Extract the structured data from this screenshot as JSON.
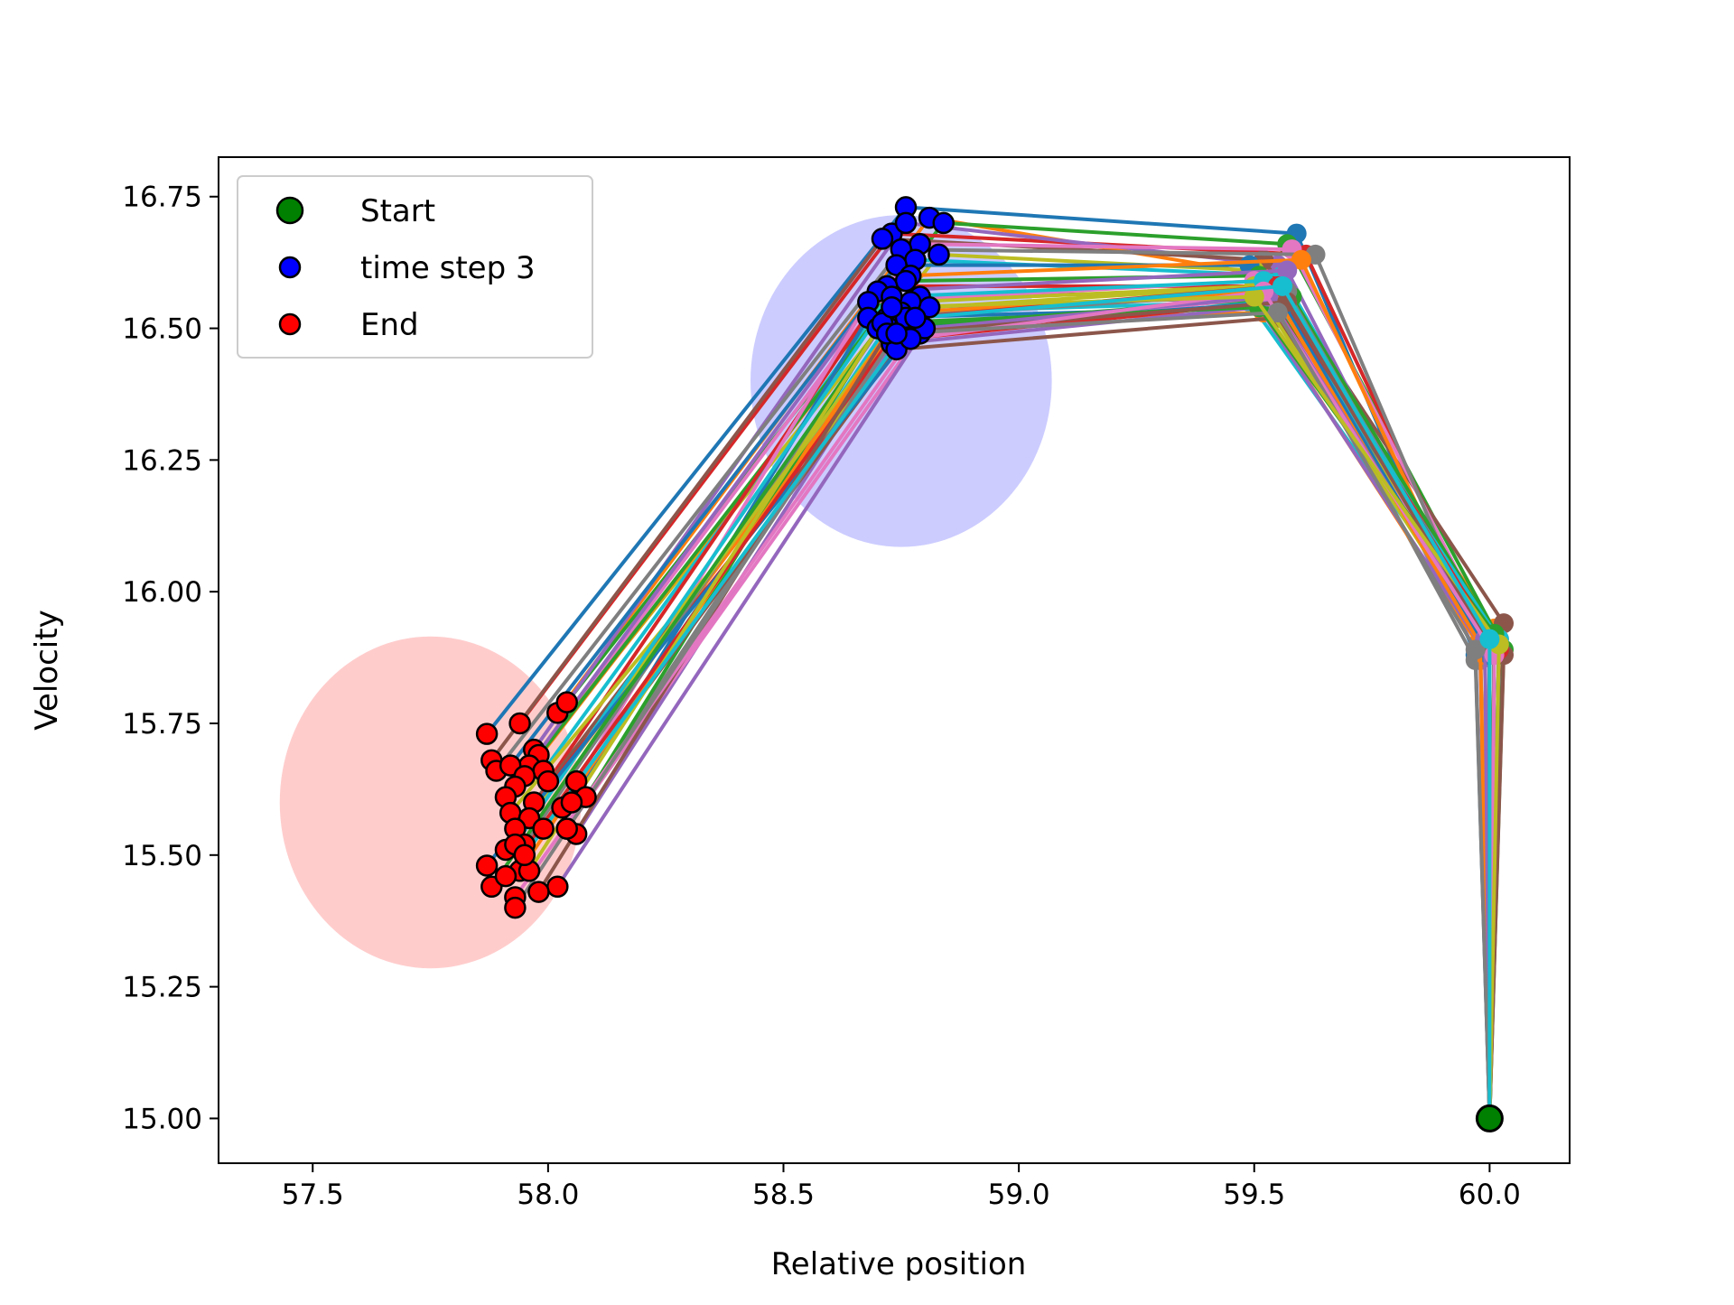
{
  "chart_data": {
    "type": "scatter",
    "title": "",
    "xlabel": "Relative position",
    "ylabel": "Velocity",
    "xlim": [
      57.3,
      60.17
    ],
    "ylim": [
      14.915,
      16.825
    ],
    "x_ticks": [
      57.5,
      58.0,
      58.5,
      59.0,
      59.5,
      60.0
    ],
    "x_tick_labels": [
      "57.5",
      "58.0",
      "58.5",
      "59.0",
      "59.5",
      "60.0"
    ],
    "y_ticks": [
      15.0,
      15.25,
      15.5,
      15.75,
      16.0,
      16.25,
      16.5,
      16.75
    ],
    "y_tick_labels": [
      "15.00",
      "15.25",
      "15.50",
      "15.75",
      "16.00",
      "16.25",
      "16.50",
      "16.75"
    ],
    "grid": false,
    "legend": {
      "position": "top-left",
      "entries": [
        {
          "label": "Start",
          "color": "#008000"
        },
        {
          "label": "time step 3",
          "color": "#0000ff"
        },
        {
          "label": "End",
          "color": "#ff0000"
        }
      ]
    },
    "ellipses": [
      {
        "name": "end-region",
        "center": [
          57.75,
          15.6
        ],
        "width": 0.64,
        "height": 0.63,
        "color": "#ff9999"
      },
      {
        "name": "time-step-3-region",
        "center": [
          58.75,
          16.4
        ],
        "width": 0.64,
        "height": 0.63,
        "color": "#9999ff"
      }
    ],
    "start": {
      "x": 60.0,
      "y": 15.0
    },
    "trajectory_colors": [
      "#1f77b4",
      "#ff7f0e",
      "#2ca02c",
      "#d62728",
      "#9467bd",
      "#8c564b",
      "#e377c2",
      "#7f7f7f",
      "#bcbd22",
      "#17becf"
    ],
    "trajectories": [
      [
        [
          59.97,
          15.88
        ],
        [
          59.59,
          16.68
        ],
        [
          58.76,
          16.73
        ],
        [
          57.87,
          15.73
        ]
      ],
      [
        [
          60.01,
          15.93
        ],
        [
          59.53,
          16.6
        ],
        [
          58.81,
          16.71
        ],
        [
          58.02,
          15.77
        ]
      ],
      [
        [
          60.02,
          15.91
        ],
        [
          59.57,
          16.66
        ],
        [
          58.84,
          16.7
        ],
        [
          58.04,
          15.79
        ]
      ],
      [
        [
          60.0,
          15.9
        ],
        [
          59.61,
          16.64
        ],
        [
          58.73,
          16.68
        ],
        [
          57.94,
          15.75
        ]
      ],
      [
        [
          59.98,
          15.87
        ],
        [
          59.55,
          16.62
        ],
        [
          58.76,
          16.7
        ],
        [
          57.97,
          15.7
        ]
      ],
      [
        [
          60.03,
          15.94
        ],
        [
          59.52,
          16.63
        ],
        [
          58.71,
          16.67
        ],
        [
          57.88,
          15.68
        ]
      ],
      [
        [
          60.0,
          15.92
        ],
        [
          59.58,
          16.65
        ],
        [
          58.79,
          16.66
        ],
        [
          57.98,
          15.69
        ]
      ],
      [
        [
          59.99,
          15.89
        ],
        [
          59.63,
          16.64
        ],
        [
          58.75,
          16.65
        ],
        [
          57.89,
          15.66
        ]
      ],
      [
        [
          60.01,
          15.91
        ],
        [
          59.5,
          16.61
        ],
        [
          58.83,
          16.64
        ],
        [
          57.96,
          15.67
        ]
      ],
      [
        [
          60.02,
          15.88
        ],
        [
          59.56,
          16.6
        ],
        [
          58.78,
          16.63
        ],
        [
          57.99,
          15.66
        ]
      ],
      [
        [
          60.0,
          15.9
        ],
        [
          59.49,
          16.62
        ],
        [
          58.74,
          16.62
        ],
        [
          57.92,
          15.67
        ]
      ],
      [
        [
          59.98,
          15.91
        ],
        [
          59.6,
          16.63
        ],
        [
          58.77,
          16.6
        ],
        [
          57.95,
          15.65
        ]
      ],
      [
        [
          60.03,
          15.89
        ],
        [
          59.51,
          16.6
        ],
        [
          58.76,
          16.59
        ],
        [
          57.93,
          15.63
        ]
      ],
      [
        [
          60.01,
          15.92
        ],
        [
          59.54,
          16.58
        ],
        [
          58.72,
          16.58
        ],
        [
          58.0,
          15.64
        ]
      ],
      [
        [
          59.99,
          15.88
        ],
        [
          59.57,
          16.61
        ],
        [
          58.7,
          16.57
        ],
        [
          57.91,
          15.61
        ]
      ],
      [
        [
          60.0,
          15.9
        ],
        [
          59.52,
          16.57
        ],
        [
          58.79,
          16.56
        ],
        [
          57.97,
          15.6
        ]
      ],
      [
        [
          60.02,
          15.91
        ],
        [
          59.5,
          16.59
        ],
        [
          58.68,
          16.55
        ],
        [
          58.06,
          15.64
        ]
      ],
      [
        [
          59.97,
          15.87
        ],
        [
          59.55,
          16.56
        ],
        [
          58.77,
          16.54
        ],
        [
          58.08,
          15.61
        ]
      ],
      [
        [
          60.01,
          15.89
        ],
        [
          59.53,
          16.58
        ],
        [
          58.81,
          16.54
        ],
        [
          57.92,
          15.58
        ]
      ],
      [
        [
          60.0,
          15.91
        ],
        [
          59.49,
          16.55
        ],
        [
          58.74,
          16.53
        ],
        [
          58.03,
          15.59
        ]
      ],
      [
        [
          60.02,
          15.9
        ],
        [
          59.56,
          16.54
        ],
        [
          58.68,
          16.52
        ],
        [
          58.05,
          15.6
        ]
      ],
      [
        [
          59.99,
          15.88
        ],
        [
          59.52,
          16.53
        ],
        [
          58.75,
          16.51
        ],
        [
          57.96,
          15.57
        ]
      ],
      [
        [
          60.01,
          15.92
        ],
        [
          59.58,
          16.56
        ],
        [
          58.7,
          16.5
        ],
        [
          58.04,
          15.55
        ]
      ],
      [
        [
          60.0,
          15.89
        ],
        [
          59.54,
          16.55
        ],
        [
          58.76,
          16.48
        ],
        [
          57.93,
          15.55
        ]
      ],
      [
        [
          59.98,
          15.9
        ],
        [
          59.51,
          16.54
        ],
        [
          58.73,
          16.47
        ],
        [
          58.06,
          15.54
        ]
      ],
      [
        [
          60.03,
          15.88
        ],
        [
          59.55,
          16.52
        ],
        [
          58.74,
          16.46
        ],
        [
          57.99,
          15.55
        ]
      ],
      [
        [
          60.0,
          15.91
        ],
        [
          59.53,
          16.56
        ],
        [
          58.79,
          16.49
        ],
        [
          58.04,
          15.55
        ]
      ],
      [
        [
          60.01,
          15.89
        ],
        [
          59.57,
          16.57
        ],
        [
          58.72,
          16.52
        ],
        [
          57.95,
          15.52
        ]
      ],
      [
        [
          59.99,
          15.9
        ],
        [
          59.5,
          16.58
        ],
        [
          58.77,
          16.55
        ],
        [
          57.91,
          15.51
        ]
      ],
      [
        [
          60.02,
          15.91
        ],
        [
          59.52,
          16.59
        ],
        [
          58.73,
          16.56
        ],
        [
          57.93,
          15.52
        ]
      ],
      [
        [
          60.0,
          15.88
        ],
        [
          59.56,
          16.55
        ],
        [
          58.78,
          16.5
        ],
        [
          57.87,
          15.48
        ]
      ],
      [
        [
          59.98,
          15.9
        ],
        [
          59.54,
          16.57
        ],
        [
          58.75,
          16.53
        ],
        [
          57.94,
          15.47
        ]
      ],
      [
        [
          60.01,
          15.92
        ],
        [
          59.51,
          16.54
        ],
        [
          58.71,
          16.51
        ],
        [
          57.88,
          15.44
        ]
      ],
      [
        [
          60.02,
          15.89
        ],
        [
          59.55,
          16.58
        ],
        [
          58.76,
          16.52
        ],
        [
          57.91,
          15.46
        ]
      ],
      [
        [
          59.99,
          15.91
        ],
        [
          59.53,
          16.56
        ],
        [
          58.8,
          16.5
        ],
        [
          58.02,
          15.44
        ]
      ],
      [
        [
          60.0,
          15.9
        ],
        [
          59.57,
          16.55
        ],
        [
          58.72,
          16.49
        ],
        [
          57.98,
          15.43
        ]
      ],
      [
        [
          60.01,
          15.88
        ],
        [
          59.52,
          16.57
        ],
        [
          58.77,
          16.48
        ],
        [
          57.93,
          15.42
        ]
      ],
      [
        [
          59.97,
          15.89
        ],
        [
          59.55,
          16.53
        ],
        [
          58.74,
          16.49
        ],
        [
          57.93,
          15.4
        ]
      ],
      [
        [
          60.02,
          15.9
        ],
        [
          59.5,
          16.56
        ],
        [
          58.73,
          16.54
        ],
        [
          57.96,
          15.47
        ]
      ],
      [
        [
          60.0,
          15.91
        ],
        [
          59.56,
          16.58
        ],
        [
          58.78,
          16.52
        ],
        [
          57.95,
          15.5
        ]
      ]
    ]
  }
}
